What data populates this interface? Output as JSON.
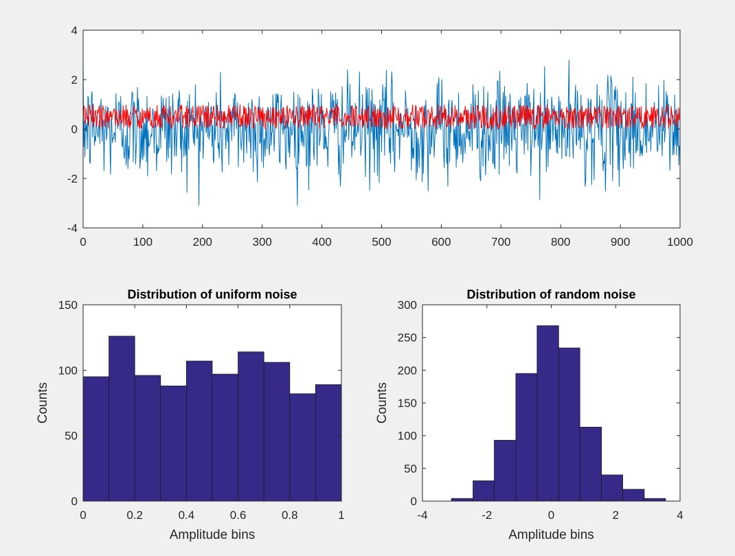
{
  "chart_data": [
    {
      "id": "signal",
      "type": "line",
      "title": "",
      "xlabel": "",
      "ylabel": "",
      "xlim": [
        0,
        1000
      ],
      "ylim": [
        -4,
        4
      ],
      "xticks": [
        "0",
        "100",
        "200",
        "300",
        "400",
        "500",
        "600",
        "700",
        "800",
        "900",
        "1000"
      ],
      "yticks": [
        "-4",
        "-2",
        "0",
        "2",
        "4"
      ],
      "grid": false,
      "series": [
        {
          "color": "#0072bd",
          "kind": "gaussian random noise",
          "n": 1000,
          "mean": 0,
          "std": 1,
          "min_approx": -3.1,
          "max_approx": 3.55
        },
        {
          "color": "#ff0000",
          "kind": "uniform random noise",
          "n": 1000,
          "min": 0,
          "max": 1
        }
      ]
    },
    {
      "id": "uniform_hist",
      "type": "bar",
      "title": "Distribution of uniform noise",
      "xlabel": "Amplitude bins",
      "ylabel": "Counts",
      "xlim": [
        0,
        1
      ],
      "ylim": [
        0,
        150
      ],
      "xticks": [
        "0",
        "0.2",
        "0.4",
        "0.6",
        "0.8",
        "1"
      ],
      "yticks": [
        "0",
        "50",
        "100",
        "150"
      ],
      "bin_edges": [
        0,
        0.1,
        0.2,
        0.3,
        0.4,
        0.5,
        0.6,
        0.7,
        0.8,
        0.9,
        1.0
      ],
      "values": [
        95,
        126,
        96,
        88,
        107,
        97,
        114,
        106,
        82,
        89
      ],
      "bar_color": "#352a87"
    },
    {
      "id": "random_hist",
      "type": "bar",
      "title": "Distribution of random noise",
      "xlabel": "Amplitude bins",
      "ylabel": "Counts",
      "xlim": [
        -4,
        4
      ],
      "ylim": [
        0,
        300
      ],
      "xticks": [
        "-4",
        "-2",
        "0",
        "2",
        "4"
      ],
      "yticks": [
        "0",
        "50",
        "100",
        "150",
        "200",
        "250",
        "300"
      ],
      "bin_edges": [
        -3.1,
        -2.43,
        -1.77,
        -1.1,
        -0.44,
        0.23,
        0.89,
        1.56,
        2.22,
        2.89,
        3.55
      ],
      "values": [
        4,
        31,
        93,
        195,
        268,
        234,
        113,
        40,
        18,
        4
      ],
      "bar_color": "#352a87"
    }
  ]
}
